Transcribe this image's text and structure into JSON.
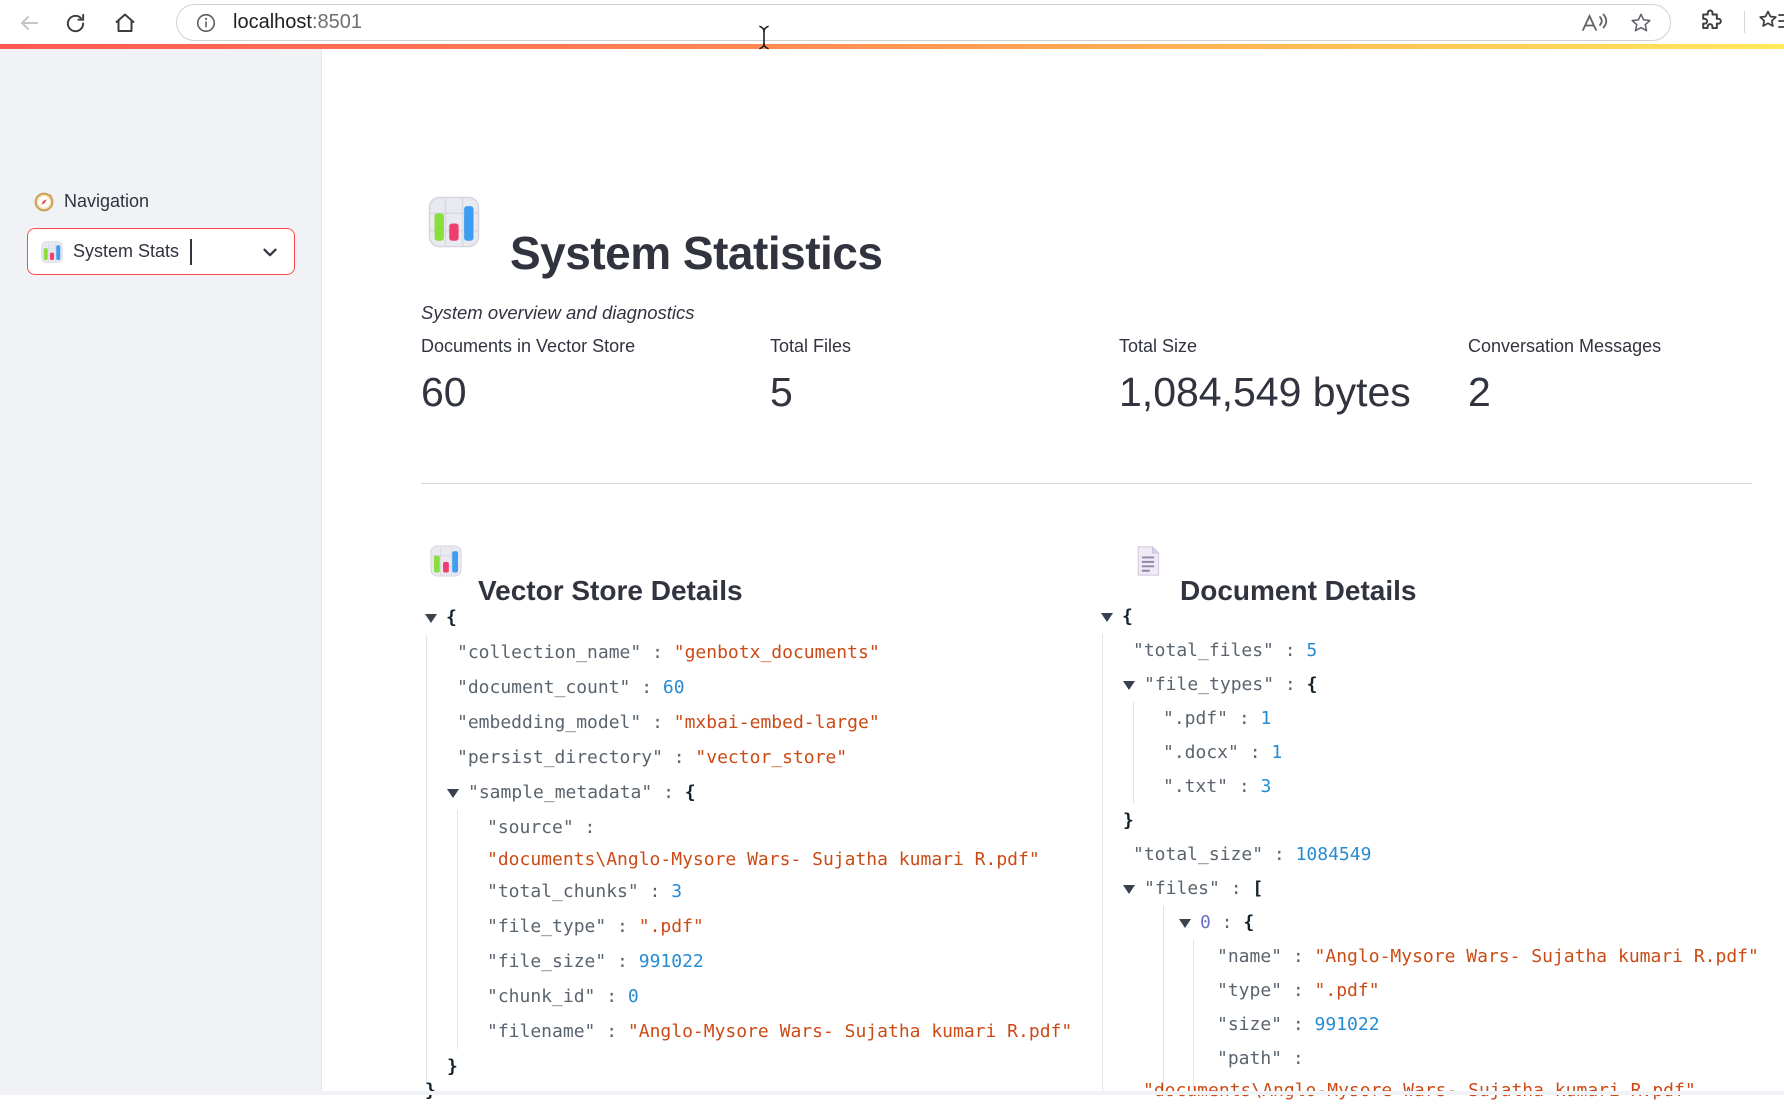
{
  "browser": {
    "url_host": "localhost",
    "url_port": ":8501"
  },
  "sidebar": {
    "nav_label": "Navigation",
    "page_select": {
      "value": "System Stats"
    }
  },
  "page": {
    "title": "System Statistics",
    "subtitle": "System overview and diagnostics"
  },
  "metrics": [
    {
      "label": "Documents in Vector Store",
      "value": "60"
    },
    {
      "label": "Total Files",
      "value": "5"
    },
    {
      "label": "Total Size",
      "value": "1,084,549 bytes"
    },
    {
      "label": "Conversation Messages",
      "value": "2"
    }
  ],
  "sections": {
    "vector_store": {
      "heading": "Vector Store Details",
      "rows": [
        {
          "lv": "l0",
          "arrow": true,
          "tokens": [
            [
              "brace",
              "{"
            ]
          ]
        },
        {
          "lv": "l1",
          "tokens": [
            [
              "key",
              "\"collection_name\""
            ],
            [
              "colon",
              " : "
            ],
            [
              "string",
              "\"genbotx_documents\""
            ]
          ]
        },
        {
          "lv": "l1",
          "tokens": [
            [
              "key",
              "\"document_count\""
            ],
            [
              "colon",
              " : "
            ],
            [
              "number",
              "60"
            ]
          ]
        },
        {
          "lv": "l1",
          "tokens": [
            [
              "key",
              "\"embedding_model\""
            ],
            [
              "colon",
              " : "
            ],
            [
              "string",
              "\"mxbai-embed-large\""
            ]
          ]
        },
        {
          "lv": "l1",
          "tokens": [
            [
              "key",
              "\"persist_directory\""
            ],
            [
              "colon",
              " : "
            ],
            [
              "string",
              "\"vector_store\""
            ]
          ]
        },
        {
          "lv": "l1e",
          "arrow": true,
          "tokens": [
            [
              "key",
              "\"sample_metadata\""
            ],
            [
              "colon",
              " : "
            ],
            [
              "brace",
              "{"
            ]
          ]
        },
        {
          "lv": "l2",
          "tokens": [
            [
              "key",
              "\"source\""
            ],
            [
              "colon",
              " : "
            ]
          ]
        },
        {
          "lv": "l2",
          "wrap": true,
          "tokens": [
            [
              "string",
              "\"documents\\Anglo-Mysore Wars- Sujatha kumari R.pdf\""
            ]
          ]
        },
        {
          "lv": "l2",
          "tokens": [
            [
              "key",
              "\"total_chunks\""
            ],
            [
              "colon",
              " : "
            ],
            [
              "number",
              "3"
            ]
          ]
        },
        {
          "lv": "l2",
          "tokens": [
            [
              "key",
              "\"file_type\""
            ],
            [
              "colon",
              " : "
            ],
            [
              "string",
              "\".pdf\""
            ]
          ]
        },
        {
          "lv": "l2",
          "tokens": [
            [
              "key",
              "\"file_size\""
            ],
            [
              "colon",
              " : "
            ],
            [
              "number",
              "991022"
            ]
          ]
        },
        {
          "lv": "l2",
          "tokens": [
            [
              "key",
              "\"chunk_id\""
            ],
            [
              "colon",
              " : "
            ],
            [
              "number",
              "0"
            ]
          ]
        },
        {
          "lv": "l2",
          "tokens": [
            [
              "key",
              "\"filename\""
            ],
            [
              "colon",
              " : "
            ],
            [
              "string",
              "\"Anglo-Mysore Wars- Sujatha kumari R.pdf\""
            ]
          ]
        },
        {
          "lv": "l1c",
          "tokens": [
            [
              "brace",
              "}"
            ]
          ]
        },
        {
          "lv": "l0",
          "cut": true,
          "tokens": [
            [
              "brace",
              "}"
            ]
          ]
        }
      ]
    },
    "documents": {
      "heading": "Document Details",
      "rows": [
        {
          "lv": "l0",
          "arrow": true,
          "tokens": [
            [
              "brace",
              "{"
            ]
          ]
        },
        {
          "lv": "l1",
          "tokens": [
            [
              "key",
              "\"total_files\""
            ],
            [
              "colon",
              " : "
            ],
            [
              "number",
              "5"
            ]
          ]
        },
        {
          "lv": "l1e",
          "arrow": true,
          "tokens": [
            [
              "key",
              "\"file_types\""
            ],
            [
              "colon",
              " : "
            ],
            [
              "brace",
              "{"
            ]
          ]
        },
        {
          "lv": "l2",
          "tokens": [
            [
              "key",
              "\".pdf\""
            ],
            [
              "colon",
              " : "
            ],
            [
              "number",
              "1"
            ]
          ]
        },
        {
          "lv": "l2",
          "tokens": [
            [
              "key",
              "\".docx\""
            ],
            [
              "colon",
              " : "
            ],
            [
              "number",
              "1"
            ]
          ]
        },
        {
          "lv": "l2",
          "tokens": [
            [
              "key",
              "\".txt\""
            ],
            [
              "colon",
              " : "
            ],
            [
              "number",
              "3"
            ]
          ]
        },
        {
          "lv": "l1c",
          "tokens": [
            [
              "brace",
              "}"
            ]
          ]
        },
        {
          "lv": "l1",
          "tokens": [
            [
              "key",
              "\"total_size\""
            ],
            [
              "colon",
              " : "
            ],
            [
              "number",
              "1084549"
            ]
          ]
        },
        {
          "lv": "l1e",
          "arrow": true,
          "tokens": [
            [
              "key",
              "\"files\""
            ],
            [
              "colon",
              " : "
            ],
            [
              "bracket",
              "["
            ]
          ]
        },
        {
          "lv": "l2e",
          "arrow": true,
          "tokens": [
            [
              "index",
              "0"
            ],
            [
              "colon",
              " : "
            ],
            [
              "brace",
              "{"
            ]
          ]
        },
        {
          "lv": "l3",
          "tokens": [
            [
              "key",
              "\"name\""
            ],
            [
              "colon",
              " : "
            ],
            [
              "string",
              "\"Anglo-Mysore Wars- Sujatha kumari R.pdf\""
            ]
          ]
        },
        {
          "lv": "l3",
          "tokens": [
            [
              "key",
              "\"type\""
            ],
            [
              "colon",
              " : "
            ],
            [
              "string",
              "\".pdf\""
            ]
          ]
        },
        {
          "lv": "l3",
          "tokens": [
            [
              "key",
              "\"size\""
            ],
            [
              "colon",
              " : "
            ],
            [
              "number",
              "991022"
            ]
          ]
        },
        {
          "lv": "l3",
          "tokens": [
            [
              "key",
              "\"path\""
            ],
            [
              "colon",
              " : "
            ]
          ]
        },
        {
          "lv": "wr",
          "wrap": true,
          "tokens": [
            [
              "string",
              "\"documents\\Anglo-Mysore Wars- Sujatha kumari R.pdf\""
            ]
          ]
        }
      ]
    }
  },
  "colors": {
    "accent": "#ff4b4b",
    "sidebar_bg": "#f0f2f6",
    "json_key": "#5a646e",
    "json_string": "#cb4b16",
    "json_number": "#268bd2",
    "json_index": "#6c71c4",
    "decoration_gradient": [
      "#ff5952",
      "#ffe95c"
    ]
  }
}
